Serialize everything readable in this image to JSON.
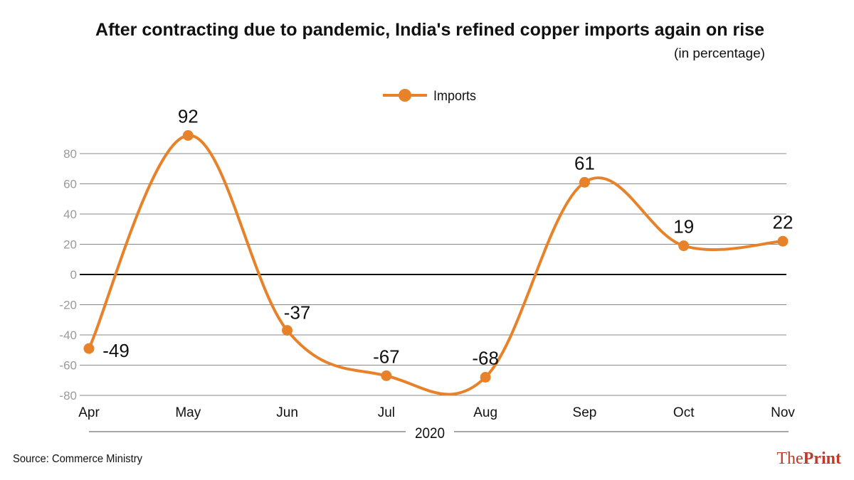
{
  "chart_data": {
    "type": "line",
    "title": "After contracting due to pandemic, India's refined copper imports again on rise",
    "subtitle": "(in percentage)",
    "categories": [
      "Apr",
      "May",
      "Jun",
      "Jul",
      "Aug",
      "Sep",
      "Oct",
      "Nov"
    ],
    "xlabel": "2020",
    "ylabel": "",
    "ylim": [
      -80,
      80
    ],
    "yticks": [
      80,
      60,
      40,
      20,
      0,
      -20,
      -40,
      -60,
      -80
    ],
    "grid": true,
    "legend_position": "top-center",
    "series": [
      {
        "name": "Imports",
        "values": [
          -49,
          92,
          -37,
          -67,
          -68,
          61,
          19,
          22
        ],
        "color": "#e8822a"
      }
    ],
    "data_labels": [
      "-49",
      "92",
      "-37",
      "-67",
      "-68",
      "61",
      "19",
      "22"
    ]
  },
  "source": "Source: Commerce Ministry",
  "logo": {
    "text_light": "The",
    "text_bold": "Print",
    "color": "#c0392b"
  }
}
